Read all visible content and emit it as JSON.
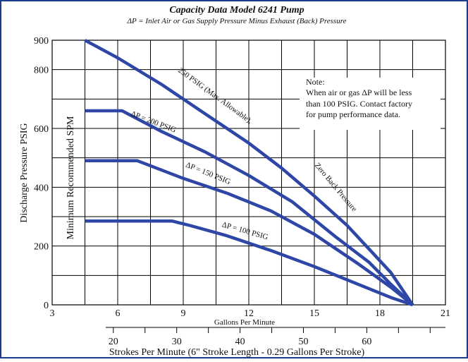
{
  "chart_data": {
    "type": "line",
    "title": "Capacity Data Model 6241 Pump",
    "subtitle": "ΔP = Inlet Air or Gas Supply Pressure Minus Exhaust (Back) Pressure",
    "xlabel": "Gallons Per Minute",
    "ylabel": "Discharge Pressure PSIG",
    "x2label": "Strokes Per Minute (6\" Stroke Length - 0.29 Gallons Per Stroke)",
    "xlim": [
      3,
      21
    ],
    "ylim": [
      0,
      900
    ],
    "x_ticks": [
      "3",
      "6",
      "9",
      "12",
      "15",
      "18",
      "21"
    ],
    "y_ticks": [
      "0",
      "200",
      "400",
      "600",
      "800",
      "900"
    ],
    "x2_ticks": [
      {
        "label": "20",
        "gpm": 5.8
      },
      {
        "label": "30",
        "gpm": 8.7
      },
      {
        "label": "40",
        "gpm": 11.6
      },
      {
        "label": "50",
        "gpm": 14.5
      },
      {
        "label": "60",
        "gpm": 17.4
      }
    ],
    "min_spm_label": "Minimum Recommended SPM",
    "grid": true,
    "series": [
      {
        "name": "250 PSIG (Max. Allowable), Zero Back Pressure",
        "x": [
          4.5,
          6.0,
          8.0,
          10.0,
          12.0,
          13.5,
          15.0,
          16.5,
          17.5,
          18.5,
          19.5
        ],
        "y": [
          900,
          840,
          750,
          650,
          550,
          465,
          370,
          270,
          190,
          110,
          0
        ]
      },
      {
        "name": "ΔP = 200 PSIG",
        "x": [
          4.5,
          6.2,
          8.0,
          10.0,
          12.0,
          14.0,
          16.0,
          17.5,
          18.5,
          19.5
        ],
        "y": [
          660,
          660,
          590,
          520,
          440,
          350,
          230,
          145,
          70,
          0
        ]
      },
      {
        "name": "ΔP = 150 PSIG",
        "x": [
          4.5,
          6.9,
          9.0,
          11.0,
          13.0,
          15.0,
          17.0,
          18.5,
          19.5
        ],
        "y": [
          490,
          490,
          430,
          380,
          320,
          240,
          140,
          60,
          0
        ]
      },
      {
        "name": "ΔP = 100 PSIG",
        "x": [
          4.5,
          8.5,
          9.3,
          11.0,
          13.0,
          15.0,
          17.0,
          18.5,
          19.5
        ],
        "y": [
          285,
          285,
          270,
          235,
          185,
          130,
          70,
          25,
          0
        ]
      }
    ],
    "curve_labels": [
      {
        "text": "250 PSIG (Max. Allowable),",
        "x": 10.4,
        "y": 705,
        "angle": 36
      },
      {
        "text": "Zero Back Pressure",
        "x": 15.9,
        "y": 395,
        "angle": 50
      },
      {
        "text": "ΔP = 200 PSIG",
        "x": 7.6,
        "y": 615,
        "angle": 21
      },
      {
        "text": "ΔP = 150 PSIG",
        "x": 10.1,
        "y": 440,
        "angle": 22
      },
      {
        "text": "ΔP = 100 PSIG",
        "x": 11.8,
        "y": 244,
        "angle": 16
      }
    ],
    "note": {
      "title": "Note:",
      "lines": [
        "When air or gas ΔP will be less",
        "than 100 PSIG. Contact factory",
        "for pump performance data."
      ]
    },
    "colors": {
      "series": "#2e46a6",
      "grid": "#000000",
      "frame": "#1b3b8c"
    }
  }
}
